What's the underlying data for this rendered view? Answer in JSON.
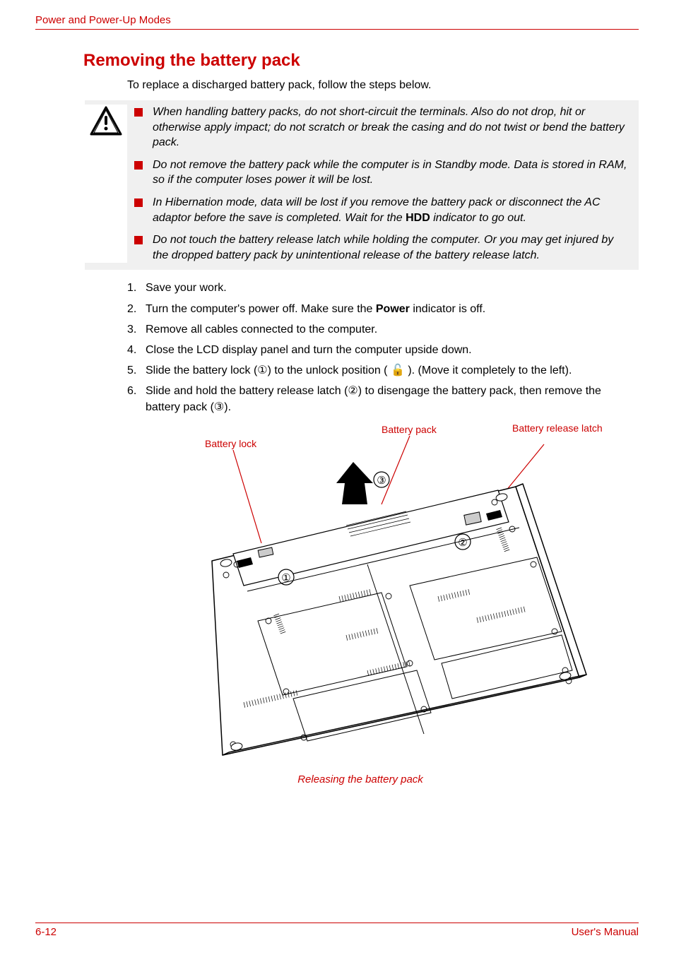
{
  "header": "Power and Power-Up Modes",
  "section_title": "Removing the battery pack",
  "intro": "To replace a discharged battery pack, follow the steps below.",
  "warnings": [
    "When handling battery packs, do not short-circuit the terminals. Also do not drop, hit or otherwise apply impact; do not scratch or break the casing and do not twist or bend the battery pack.",
    "Do not remove the battery pack while the computer is in Standby mode. Data is stored in RAM, so if the computer loses power it will be lost.",
    "In Hibernation mode, data will be lost if you remove the battery pack or disconnect the AC adaptor before the save is completed. Wait for the <b>HDD</b> indicator to go out.",
    "Do not touch the battery release latch while holding the computer. Or you may get injured by the dropped battery pack by unintentional release of the battery release latch."
  ],
  "steps": [
    {
      "n": "1.",
      "t": "Save your work."
    },
    {
      "n": "2.",
      "t": "Turn the computer's power off. Make sure the <b>Power</b> indicator is off."
    },
    {
      "n": "3.",
      "t": "Remove all cables connected to the computer."
    },
    {
      "n": "4.",
      "t": "Close the LCD display panel and turn the computer upside down."
    },
    {
      "n": "5.",
      "t": "Slide the battery lock (①) to the unlock position ( 🔓 ). (Move it completely to the left)."
    },
    {
      "n": "6.",
      "t": "Slide and hold the battery release latch (②) to disengage the battery pack, then remove the battery pack (③)."
    }
  ],
  "figure": {
    "labels": {
      "battery_lock": "Battery lock",
      "battery_pack": "Battery pack",
      "battery_release_latch": "Battery release latch"
    },
    "callouts": [
      "①",
      "②",
      "③"
    ],
    "caption": "Releasing the battery pack"
  },
  "footer": {
    "page": "6-12",
    "manual": "User's Manual"
  },
  "colors": {
    "accent": "#cc0000",
    "warn_bg": "#f0f0f0"
  }
}
